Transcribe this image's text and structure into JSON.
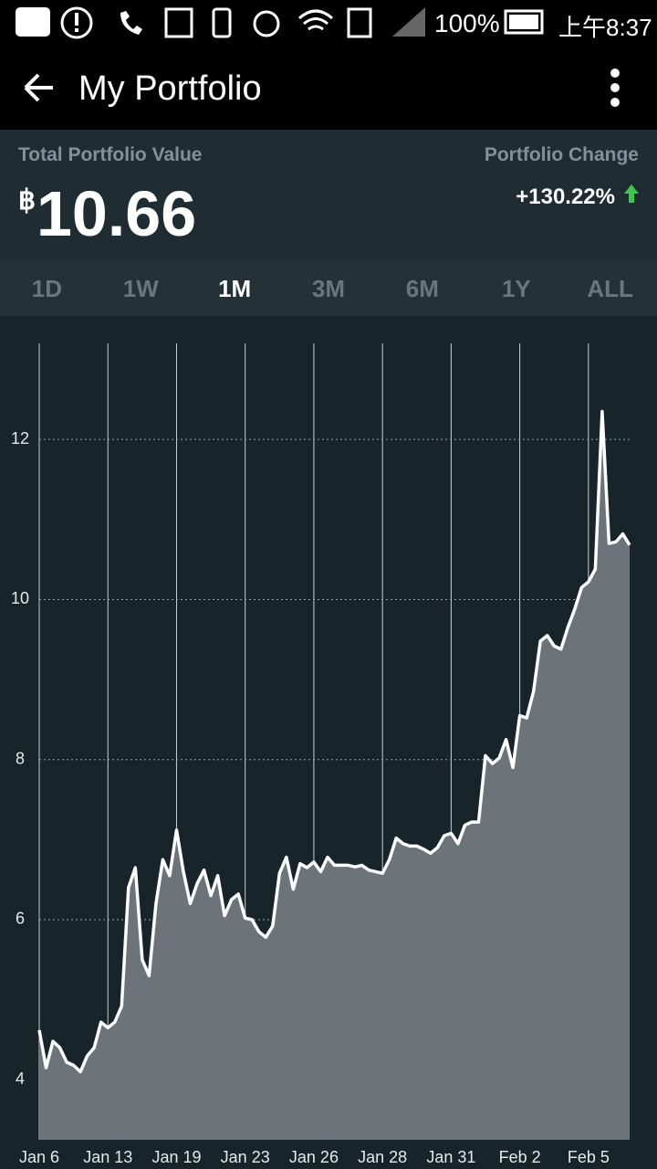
{
  "status_bar": {
    "battery": "100%",
    "time": "上午8:37"
  },
  "app_bar": {
    "title": "My Portfolio"
  },
  "summary": {
    "value_label": "Total Portfolio Value",
    "currency": "฿",
    "value": "10.66",
    "change_label": "Portfolio Change",
    "change": "+130.22%"
  },
  "ranges": {
    "options": [
      "1D",
      "1W",
      "1M",
      "3M",
      "6M",
      "1Y",
      "ALL"
    ],
    "selected": 2
  },
  "chart_data": {
    "type": "area",
    "color": "#ffffff",
    "fill": "#6c7479",
    "categories": [
      "Jan 6",
      null,
      null,
      null,
      null,
      null,
      null,
      null,
      null,
      null,
      "Jan 13",
      null,
      null,
      null,
      null,
      null,
      null,
      null,
      null,
      null,
      "Jan 19",
      null,
      null,
      null,
      null,
      null,
      null,
      null,
      null,
      null,
      "Jan 23",
      null,
      null,
      null,
      null,
      null,
      null,
      null,
      null,
      null,
      "Jan 26",
      null,
      null,
      null,
      null,
      null,
      null,
      null,
      null,
      null,
      "Jan 28",
      null,
      null,
      null,
      null,
      null,
      null,
      null,
      null,
      null,
      "Jan 31",
      null,
      null,
      null,
      null,
      null,
      null,
      null,
      null,
      null,
      "Feb 2",
      null,
      null,
      null,
      null,
      null,
      null,
      null,
      null,
      null,
      "Feb 5",
      null,
      null,
      null,
      null,
      null,
      null
    ],
    "values": [
      4.62,
      4.15,
      4.48,
      4.4,
      4.22,
      4.18,
      4.1,
      4.3,
      4.4,
      4.72,
      4.65,
      4.72,
      4.92,
      6.4,
      6.65,
      5.5,
      5.3,
      6.2,
      6.75,
      6.55,
      7.12,
      6.6,
      6.2,
      6.45,
      6.62,
      6.3,
      6.55,
      6.05,
      6.25,
      6.32,
      6.02,
      6.0,
      5.85,
      5.78,
      5.92,
      6.58,
      6.78,
      6.38,
      6.7,
      6.65,
      6.72,
      6.6,
      6.78,
      6.68,
      6.68,
      6.68,
      6.66,
      6.68,
      6.62,
      6.6,
      6.58,
      6.75,
      7.02,
      6.95,
      6.92,
      6.92,
      6.88,
      6.83,
      6.9,
      7.05,
      7.08,
      6.95,
      7.18,
      7.22,
      7.22,
      8.05,
      7.95,
      8.02,
      8.25,
      7.9,
      8.55,
      8.52,
      8.85,
      9.48,
      9.55,
      9.42,
      9.38,
      9.65,
      9.88,
      10.15,
      10.22,
      10.38,
      12.35,
      10.7,
      10.72,
      10.82,
      10.68
    ],
    "ylim": [
      3.25,
      13.2
    ],
    "yticks": [
      4,
      6,
      8,
      10,
      12
    ],
    "grid": true
  }
}
